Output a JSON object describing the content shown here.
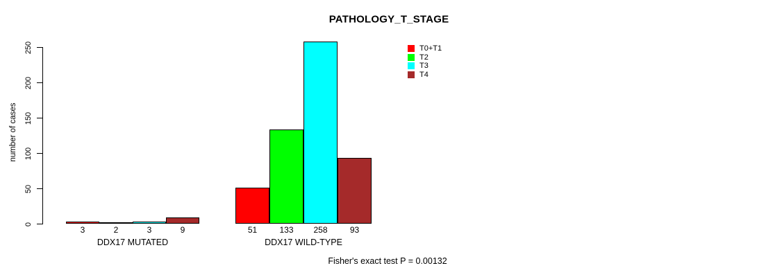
{
  "chart_data": {
    "type": "bar",
    "title": "PATHOLOGY_T_STAGE",
    "ylabel": "number of cases",
    "xlabel": "",
    "annotation": "Fisher's exact test P = 0.00132",
    "categories": [
      "DDX17 MUTATED",
      "DDX17 WILD-TYPE"
    ],
    "series": [
      {
        "name": "T0+T1",
        "color": "#FF0000",
        "values": [
          3,
          51
        ]
      },
      {
        "name": "T2",
        "color": "#00FF00",
        "values": [
          2,
          133
        ]
      },
      {
        "name": "T3",
        "color": "#00FFFF",
        "values": [
          3,
          258
        ]
      },
      {
        "name": "T4",
        "color": "#A52A2A",
        "values": [
          9,
          93
        ]
      }
    ],
    "yticks": [
      0,
      50,
      100,
      150,
      200,
      250
    ],
    "ylim": [
      0,
      250
    ],
    "value_labels": true,
    "grid": false,
    "legend_position": "top-right",
    "bar_border_color": "#000000",
    "background_color": "#FFFFFF"
  }
}
